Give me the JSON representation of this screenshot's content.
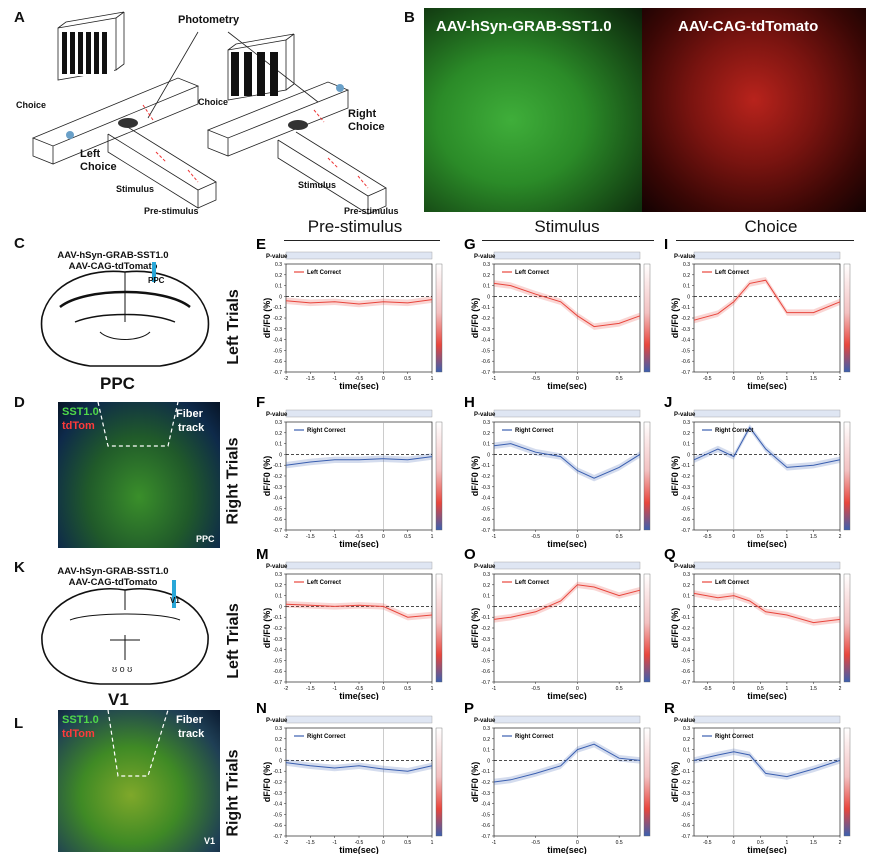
{
  "panels_text": {
    "A": "A",
    "B": "B",
    "C": "C",
    "D": "D",
    "K": "K",
    "L": "L",
    "E": "E",
    "F": "F",
    "G": "G",
    "H": "H",
    "I": "I",
    "J": "J",
    "M": "M",
    "N": "N",
    "O": "O",
    "P": "P",
    "Q": "Q",
    "R": "R"
  },
  "schematic": {
    "photometry": "Photometry",
    "choice_left_lbl": "Choice",
    "left_choice": "Left\nChoice",
    "stimulus": "Stimulus",
    "pre_stimulus": "Pre-stimulus",
    "choice_right_lbl": "Choice",
    "right_choice": "Right\nChoice",
    "stimulus2": "Stimulus",
    "pre_stimulus2": "Pre-stimulus"
  },
  "histology": {
    "green_label": "AAV-hSyn-GRAB-SST1.0",
    "red_label": "AAV-CAG-tdTomato",
    "c_line1": "AAV-hSyn-GRAB-SST1.0",
    "c_line2": "AAV-CAG-tdTomato",
    "c_region": "PPC",
    "c_small": "PPC",
    "d_sst": "SST1.0",
    "d_tdtom": "tdTom",
    "d_fiber": "Fiber",
    "d_track": "track",
    "d_region": "PPC",
    "k_line1": "AAV-hSyn-GRAB-SST1.0",
    "k_line2": "AAV-CAG-tdTomato",
    "k_region": "V1",
    "k_small": "V1",
    "l_sst": "SST1.0",
    "l_tdtom": "tdTom",
    "l_fiber": "Fiber",
    "l_track": "track",
    "l_region": "V1"
  },
  "headers": {
    "pre": "Pre-stimulus",
    "stim": "Stimulus",
    "choice": "Choice",
    "left_trials": "Left Trials",
    "right_trials": "Right Trials"
  },
  "colors": {
    "left": "#e8453c",
    "right": "#3a5fb0"
  },
  "chart_data": [
    {
      "type": "line",
      "panel": "E",
      "legend": "Left Correct",
      "xlabel": "time(sec)",
      "ylabel": "dF/F0 (%)",
      "xlim": [
        -2,
        1
      ],
      "xticks": [
        "-2",
        "-1.5",
        "-1",
        "-0.5",
        "0",
        "0.5",
        "1"
      ],
      "ylim": [
        -0.7,
        0.3
      ],
      "yticks": [
        "0.3",
        "0.2",
        "0.1",
        "0",
        "-0.1",
        "-0.2",
        "-0.3",
        "-0.4",
        "-0.5",
        "-0.6",
        "-0.7"
      ],
      "x": [
        -2,
        -1.5,
        -1,
        -0.5,
        0,
        0.5,
        1
      ],
      "y": [
        -0.04,
        -0.06,
        -0.05,
        -0.07,
        -0.05,
        -0.06,
        -0.03
      ],
      "color": "left",
      "pvalue_label": "P-value"
    },
    {
      "type": "line",
      "panel": "G",
      "legend": "Left Correct",
      "xlabel": "time(sec)",
      "ylabel": "dF/F0 (%)",
      "xlim": [
        -1,
        0.75
      ],
      "xticks": [
        "-1",
        "-0.5",
        "0",
        "0.5"
      ],
      "ylim": [
        -0.7,
        0.3
      ],
      "yticks": [
        "0.3",
        "0.2",
        "0.1",
        "0",
        "-0.1",
        "-0.2",
        "-0.3",
        "-0.4",
        "-0.5",
        "-0.6",
        "-0.7"
      ],
      "x": [
        -1,
        -0.8,
        -0.5,
        -0.2,
        0,
        0.2,
        0.5,
        0.75
      ],
      "y": [
        0.12,
        0.1,
        0.02,
        -0.05,
        -0.18,
        -0.28,
        -0.25,
        -0.18
      ],
      "color": "left",
      "pvalue_label": "P-value"
    },
    {
      "type": "line",
      "panel": "I",
      "legend": "Left Correct",
      "xlabel": "time(sec)",
      "ylabel": "dF/F0 (%)",
      "xlim": [
        -0.75,
        2
      ],
      "xticks": [
        "-0.5",
        "0",
        "0.5",
        "1",
        "1.5",
        "2"
      ],
      "ylim": [
        -0.7,
        0.3
      ],
      "yticks": [
        "0.3",
        "0.2",
        "0.1",
        "0",
        "-0.1",
        "-0.2",
        "-0.3",
        "-0.4",
        "-0.5",
        "-0.6",
        "-0.7"
      ],
      "x": [
        -0.75,
        -0.3,
        0,
        0.3,
        0.6,
        1,
        1.5,
        2
      ],
      "y": [
        -0.22,
        -0.16,
        -0.05,
        0.12,
        0.15,
        -0.15,
        -0.15,
        -0.05
      ],
      "color": "left",
      "pvalue_label": "P-value"
    },
    {
      "type": "line",
      "panel": "F",
      "legend": "Right Correct",
      "xlabel": "time(sec)",
      "ylabel": "dF/F0 (%)",
      "xlim": [
        -2,
        1
      ],
      "xticks": [
        "-2",
        "-1.5",
        "-1",
        "-0.5",
        "0",
        "0.5",
        "1"
      ],
      "ylim": [
        -0.7,
        0.3
      ],
      "yticks": [
        "0.3",
        "0.2",
        "0.1",
        "0",
        "-0.1",
        "-0.2",
        "-0.3",
        "-0.4",
        "-0.5",
        "-0.6",
        "-0.7"
      ],
      "x": [
        -2,
        -1.5,
        -1,
        -0.5,
        0,
        0.5,
        1
      ],
      "y": [
        -0.1,
        -0.07,
        -0.05,
        -0.05,
        -0.04,
        -0.05,
        -0.02
      ],
      "color": "right",
      "pvalue_label": "P-value"
    },
    {
      "type": "line",
      "panel": "H",
      "legend": "Right Correct",
      "xlabel": "time(sec)",
      "ylabel": "dF/F0 (%)",
      "xlim": [
        -1,
        0.75
      ],
      "xticks": [
        "-1",
        "-0.5",
        "0",
        "0.5"
      ],
      "ylim": [
        -0.7,
        0.3
      ],
      "yticks": [
        "0.3",
        "0.2",
        "0.1",
        "0",
        "-0.1",
        "-0.2",
        "-0.3",
        "-0.4",
        "-0.5",
        "-0.6",
        "-0.7"
      ],
      "x": [
        -1,
        -0.8,
        -0.5,
        -0.2,
        0,
        0.2,
        0.5,
        0.75
      ],
      "y": [
        0.08,
        0.1,
        0.02,
        -0.02,
        -0.15,
        -0.22,
        -0.12,
        0.0
      ],
      "color": "right",
      "pvalue_label": "P-value"
    },
    {
      "type": "line",
      "panel": "J",
      "legend": "Right Correct",
      "xlabel": "time(sec)",
      "ylabel": "dF/F0 (%)",
      "xlim": [
        -0.75,
        2
      ],
      "xticks": [
        "-0.5",
        "0",
        "0.5",
        "1",
        "1.5",
        "2"
      ],
      "ylim": [
        -0.7,
        0.3
      ],
      "yticks": [
        "0.3",
        "0.2",
        "0.1",
        "0",
        "-0.1",
        "-0.2",
        "-0.3",
        "-0.4",
        "-0.5",
        "-0.6",
        "-0.7"
      ],
      "x": [
        -0.75,
        -0.3,
        0,
        0.3,
        0.6,
        1,
        1.5,
        2
      ],
      "y": [
        -0.05,
        0.05,
        -0.02,
        0.25,
        0.05,
        -0.12,
        -0.1,
        -0.05
      ],
      "color": "right",
      "pvalue_label": "P-value"
    },
    {
      "type": "line",
      "panel": "M",
      "legend": "Left Correct",
      "xlabel": "time(sec)",
      "ylabel": "dF/F0 (%)",
      "xlim": [
        -2,
        1
      ],
      "xticks": [
        "-2",
        "-1.5",
        "-1",
        "-0.5",
        "0",
        "0.5",
        "1"
      ],
      "ylim": [
        -0.7,
        0.3
      ],
      "yticks": [
        "0.3",
        "0.2",
        "0.1",
        "0",
        "-0.1",
        "-0.2",
        "-0.3",
        "-0.4",
        "-0.5",
        "-0.6",
        "-0.7"
      ],
      "x": [
        -2,
        -1.5,
        -1,
        -0.5,
        0,
        0.5,
        1
      ],
      "y": [
        0.02,
        0.01,
        0.0,
        0.01,
        0.0,
        -0.1,
        -0.08
      ],
      "color": "left",
      "pvalue_label": "P-value"
    },
    {
      "type": "line",
      "panel": "O",
      "legend": "Left Correct",
      "xlabel": "time(sec)",
      "ylabel": "dF/F0 (%)",
      "xlim": [
        -1,
        0.75
      ],
      "xticks": [
        "-1",
        "-0.5",
        "0",
        "0.5"
      ],
      "ylim": [
        -0.7,
        0.3
      ],
      "yticks": [
        "0.3",
        "0.2",
        "0.1",
        "0",
        "-0.1",
        "-0.2",
        "-0.3",
        "-0.4",
        "-0.5",
        "-0.6",
        "-0.7"
      ],
      "x": [
        -1,
        -0.8,
        -0.5,
        -0.2,
        0,
        0.2,
        0.5,
        0.75
      ],
      "y": [
        -0.12,
        -0.1,
        -0.05,
        0.05,
        0.2,
        0.18,
        0.1,
        0.15
      ],
      "color": "left",
      "pvalue_label": "P-value"
    },
    {
      "type": "line",
      "panel": "Q",
      "legend": "Left Correct",
      "xlabel": "time(sec)",
      "ylabel": "dF/F0 (%)",
      "xlim": [
        -0.75,
        2
      ],
      "xticks": [
        "-0.5",
        "0",
        "0.5",
        "1",
        "1.5",
        "2"
      ],
      "ylim": [
        -0.7,
        0.3
      ],
      "yticks": [
        "0.3",
        "0.2",
        "0.1",
        "0",
        "-0.1",
        "-0.2",
        "-0.3",
        "-0.4",
        "-0.5",
        "-0.6",
        "-0.7"
      ],
      "x": [
        -0.75,
        -0.3,
        0,
        0.3,
        0.6,
        1,
        1.5,
        2
      ],
      "y": [
        0.12,
        0.08,
        0.1,
        0.05,
        -0.05,
        -0.08,
        -0.15,
        -0.12
      ],
      "color": "left",
      "pvalue_label": "P-value"
    },
    {
      "type": "line",
      "panel": "N",
      "legend": "Right Correct",
      "xlabel": "time(sec)",
      "ylabel": "dF/F0 (%)",
      "xlim": [
        -2,
        1
      ],
      "xticks": [
        "-2",
        "-1.5",
        "-1",
        "-0.5",
        "0",
        "0.5",
        "1"
      ],
      "ylim": [
        -0.7,
        0.3
      ],
      "yticks": [
        "0.3",
        "0.2",
        "0.1",
        "0",
        "-0.1",
        "-0.2",
        "-0.3",
        "-0.4",
        "-0.5",
        "-0.6",
        "-0.7"
      ],
      "x": [
        -2,
        -1.5,
        -1,
        -0.5,
        0,
        0.5,
        1
      ],
      "y": [
        -0.02,
        -0.05,
        -0.07,
        -0.05,
        -0.08,
        -0.1,
        -0.05
      ],
      "color": "right",
      "pvalue_label": "P-value"
    },
    {
      "type": "line",
      "panel": "P",
      "legend": "Right Correct",
      "xlabel": "time(sec)",
      "ylabel": "dF/F0 (%)",
      "xlim": [
        -1,
        0.75
      ],
      "xticks": [
        "-1",
        "-0.5",
        "0",
        "0.5"
      ],
      "ylim": [
        -0.7,
        0.3
      ],
      "yticks": [
        "0.3",
        "0.2",
        "0.1",
        "0",
        "-0.1",
        "-0.2",
        "-0.3",
        "-0.4",
        "-0.5",
        "-0.6",
        "-0.7"
      ],
      "x": [
        -1,
        -0.8,
        -0.5,
        -0.2,
        0,
        0.2,
        0.5,
        0.75
      ],
      "y": [
        -0.2,
        -0.18,
        -0.12,
        -0.05,
        0.1,
        0.15,
        0.02,
        0.0
      ],
      "color": "right",
      "pvalue_label": "P-value"
    },
    {
      "type": "line",
      "panel": "R",
      "legend": "Right Correct",
      "xlabel": "time(sec)",
      "ylabel": "dF/F0 (%)",
      "xlim": [
        -0.75,
        2
      ],
      "xticks": [
        "-0.5",
        "0",
        "0.5",
        "1",
        "1.5",
        "2"
      ],
      "ylim": [
        -0.7,
        0.3
      ],
      "yticks": [
        "0.3",
        "0.2",
        "0.1",
        "0",
        "-0.1",
        "-0.2",
        "-0.3",
        "-0.4",
        "-0.5",
        "-0.6",
        "-0.7"
      ],
      "x": [
        -0.75,
        -0.3,
        0,
        0.3,
        0.6,
        1,
        1.5,
        2
      ],
      "y": [
        0.0,
        0.05,
        0.08,
        0.05,
        -0.12,
        -0.15,
        -0.08,
        0.0
      ],
      "color": "right",
      "pvalue_label": "P-value"
    }
  ]
}
